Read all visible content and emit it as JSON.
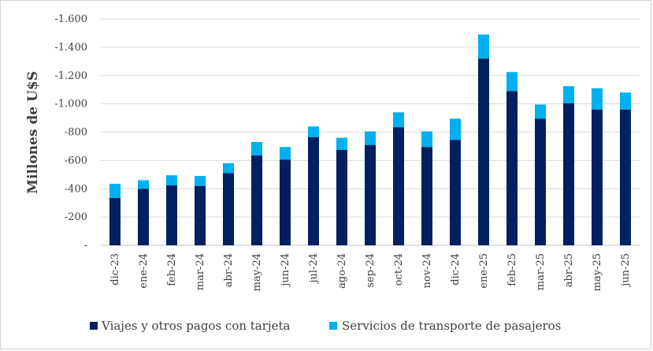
{
  "chart_data": {
    "type": "bar",
    "stacked": true,
    "title": "",
    "xlabel": "",
    "ylabel": "Millones de U$S",
    "ylim": [
      0,
      -1600
    ],
    "ytick_labels": [
      "-",
      "-200",
      "-400",
      "-600",
      "-800",
      "-1.000",
      "-1.200",
      "-1.400",
      "-1.600"
    ],
    "yticks": [
      0,
      -200,
      -400,
      -600,
      -800,
      -1000,
      -1200,
      -1400,
      -1600
    ],
    "categories": [
      "dic-23",
      "ene-24",
      "feb-24",
      "mar-24",
      "abr-24",
      "may-24",
      "jun-24",
      "jul-24",
      "ago-24",
      "sep-24",
      "oct-24",
      "nov-24",
      "dic-24",
      "ene-25",
      "feb-25",
      "mar-25",
      "abr-25",
      "may-25",
      "jun-25"
    ],
    "series": [
      {
        "name": "Viajes y otros pagos con tarjeta",
        "color": "#002060",
        "values": [
          -335,
          -400,
          -425,
          -420,
          -510,
          -635,
          -605,
          -765,
          -675,
          -710,
          -835,
          -695,
          -745,
          -1320,
          -1090,
          -895,
          -1005,
          -960,
          -960
        ]
      },
      {
        "name": "Servicios de transporte de pasajeros",
        "color": "#00B0F0",
        "values": [
          -100,
          -60,
          -70,
          -70,
          -70,
          -95,
          -90,
          -75,
          -85,
          -95,
          -105,
          -110,
          -150,
          -170,
          -135,
          -100,
          -120,
          -150,
          -120
        ]
      }
    ],
    "grid": "horizontal",
    "legend_position": "bottom"
  }
}
